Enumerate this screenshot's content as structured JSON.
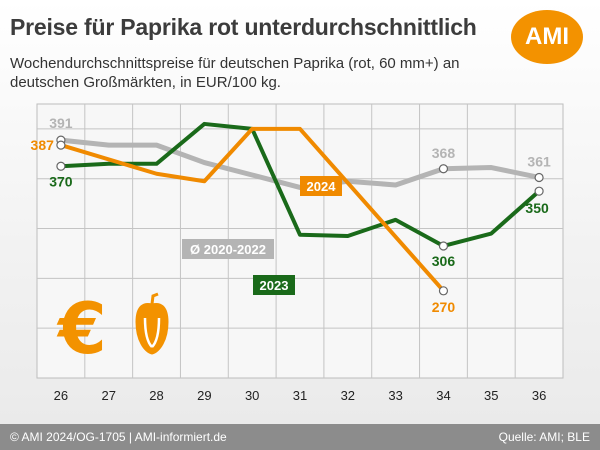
{
  "header": {
    "title": "Preise für Paprika rot unterdurchschnittlich",
    "subtitle": "Wochendurchschnittspreise für deutschen Paprika (rot, 60 mm+) an deutschen Großmärkten, in EUR/100 kg.",
    "logo": "AMI"
  },
  "footer": {
    "left": "© AMI 2024/OG-1705 | AMI-informiert.de",
    "right": "Quelle: AMI; BLE"
  },
  "icons": [
    "euro-icon",
    "pepper-icon"
  ],
  "colors": {
    "avg": "#b4b4b4",
    "y2023": "#1a6a1a",
    "y2024": "#f08a00",
    "accent": "#f39200"
  },
  "chart_data": {
    "type": "line",
    "x": [
      26,
      27,
      28,
      29,
      30,
      31,
      32,
      33,
      34,
      35,
      36
    ],
    "ylim": [
      200,
      420
    ],
    "grid": true,
    "series": [
      {
        "name": "Ø 2020-2022",
        "key": "avg",
        "values": [
          391,
          387,
          387,
          373,
          363,
          353,
          358,
          355,
          368,
          369,
          361
        ]
      },
      {
        "name": "2023",
        "key": "y2023",
        "values": [
          370,
          372,
          372,
          404,
          400,
          315,
          314,
          327,
          306,
          316,
          350
        ]
      },
      {
        "name": "2024",
        "key": "y2024",
        "values": [
          387,
          null,
          364,
          358,
          400,
          400,
          null,
          null,
          270,
          null,
          null
        ]
      }
    ],
    "data_labels": [
      {
        "series": "avg",
        "index": 0,
        "text": "391"
      },
      {
        "series": "y2024",
        "index": 0,
        "text": "387"
      },
      {
        "series": "y2023",
        "index": 0,
        "text": "370"
      },
      {
        "series": "avg",
        "index": 8,
        "text": "368"
      },
      {
        "series": "avg",
        "index": 10,
        "text": "361"
      },
      {
        "series": "y2023",
        "index": 8,
        "text": "306"
      },
      {
        "series": "y2023",
        "index": 10,
        "text": "350"
      },
      {
        "series": "y2024",
        "index": 8,
        "text": "270"
      }
    ],
    "series_labels": [
      {
        "series": "avg",
        "text": "Ø 2020-2022"
      },
      {
        "series": "y2023",
        "text": "2023"
      },
      {
        "series": "y2024",
        "text": "2024"
      }
    ]
  }
}
